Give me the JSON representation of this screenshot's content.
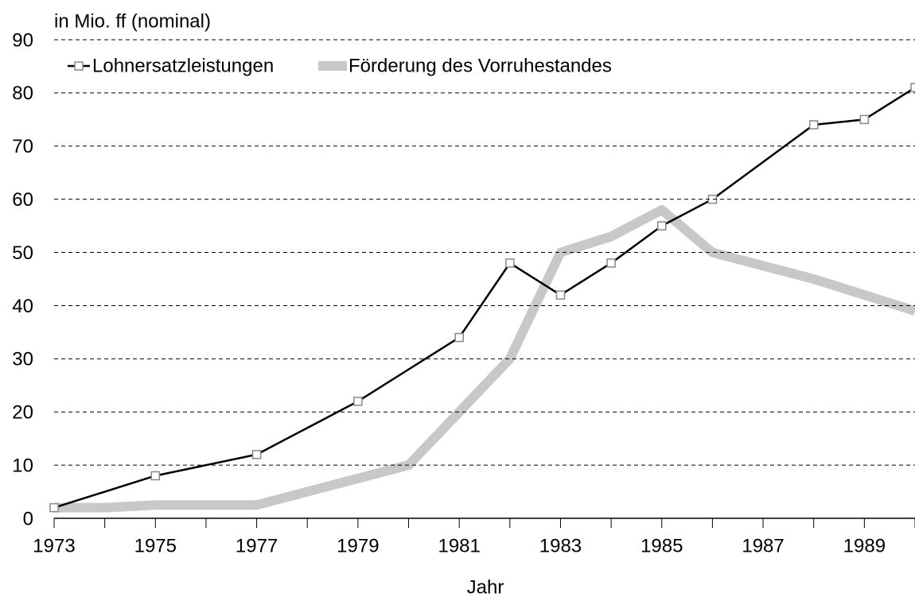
{
  "chart_data": {
    "type": "line",
    "title": "in Mio. ff (nominal)",
    "x_label": "Jahr",
    "xlim": [
      1973,
      1990
    ],
    "xticks": [
      1973,
      1975,
      1977,
      1979,
      1981,
      1983,
      1985,
      1987,
      1989
    ],
    "xminorticks": [
      1974,
      1976,
      1978,
      1980,
      1982,
      1984,
      1986,
      1988,
      1990
    ],
    "ylim": [
      0,
      90
    ],
    "yticks": [
      0,
      10,
      20,
      30,
      40,
      50,
      60,
      70,
      80,
      90
    ],
    "grid": true,
    "legend": "top-left",
    "series": [
      {
        "name": "Lohnersatzleistungen",
        "color": "#000000",
        "marker": "square",
        "x": [
          1973,
          1975,
          1977,
          1979,
          1981,
          1982,
          1983,
          1984,
          1985,
          1986,
          1988,
          1989,
          1990
        ],
        "values": [
          2,
          8,
          12,
          22,
          34,
          48,
          42,
          48,
          55,
          60,
          74,
          75,
          81
        ]
      },
      {
        "name": "Förderung des Vorruhestandes",
        "color": "#c8c8c8",
        "x": [
          1973,
          1974,
          1975,
          1976,
          1977,
          1978,
          1979,
          1980,
          1981,
          1982,
          1983,
          1984,
          1985,
          1986,
          1987,
          1988,
          1989,
          1990
        ],
        "values": [
          2,
          2,
          2.5,
          2.5,
          2.5,
          5,
          7.5,
          10,
          20,
          30,
          50,
          53,
          58,
          50,
          47.5,
          45,
          42,
          39
        ]
      }
    ]
  }
}
